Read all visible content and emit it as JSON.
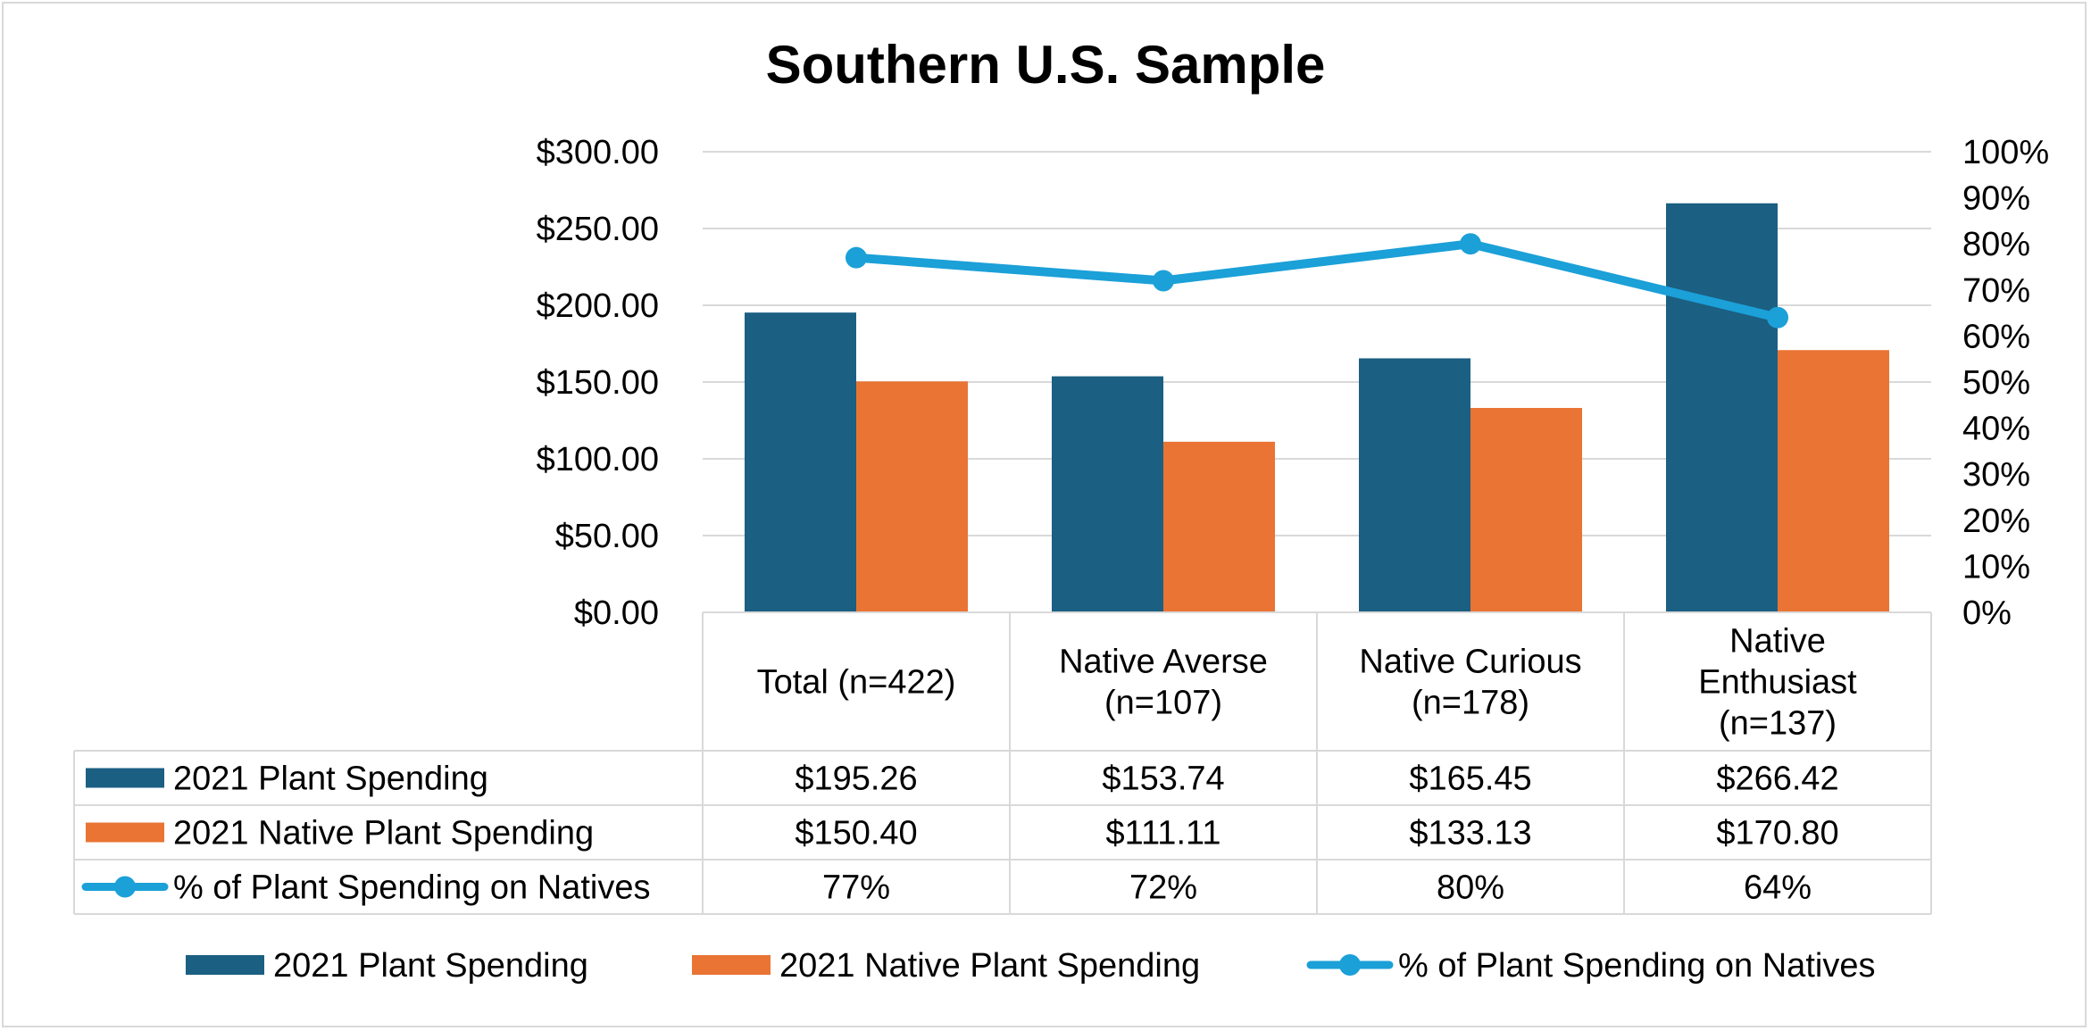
{
  "chart_data": {
    "type": "bar",
    "title": "Southern U.S. Sample",
    "categories": [
      [
        "Total (n=422)"
      ],
      [
        "Native Averse",
        "(n=107)"
      ],
      [
        "Native Curious",
        "(n=178)"
      ],
      [
        "Native",
        "Enthusiast",
        "(n=137)"
      ]
    ],
    "y_left": {
      "min": 0,
      "max": 300,
      "step": 50,
      "ticks": [
        "$0.00",
        "$50.00",
        "$100.00",
        "$150.00",
        "$200.00",
        "$250.00",
        "$300.00"
      ]
    },
    "y_right": {
      "min": 0,
      "max": 100,
      "step": 10,
      "ticks": [
        "0%",
        "10%",
        "20%",
        "30%",
        "40%",
        "50%",
        "60%",
        "70%",
        "80%",
        "90%",
        "100%"
      ]
    },
    "series": [
      {
        "name": "2021 Plant Spending",
        "kind": "bar",
        "color": "#1b5f82",
        "values": [
          195.26,
          153.74,
          165.45,
          266.42
        ],
        "table_labels": [
          "$195.26",
          "$153.74",
          "$165.45",
          "$266.42"
        ]
      },
      {
        "name": "2021 Native Plant Spending",
        "kind": "bar",
        "color": "#e97434",
        "values": [
          150.4,
          111.11,
          133.13,
          170.8
        ],
        "table_labels": [
          "$150.40",
          "$111.11",
          "$133.13",
          "$170.80"
        ]
      },
      {
        "name": "% of Plant Spending on Natives",
        "kind": "line",
        "axis": "right",
        "color": "#1ba0d8",
        "values": [
          77,
          72,
          80,
          64
        ],
        "table_labels": [
          "77%",
          "72%",
          "80%",
          "64%"
        ]
      }
    ],
    "legend_position": "bottom",
    "data_table": true,
    "gridlines": true
  }
}
